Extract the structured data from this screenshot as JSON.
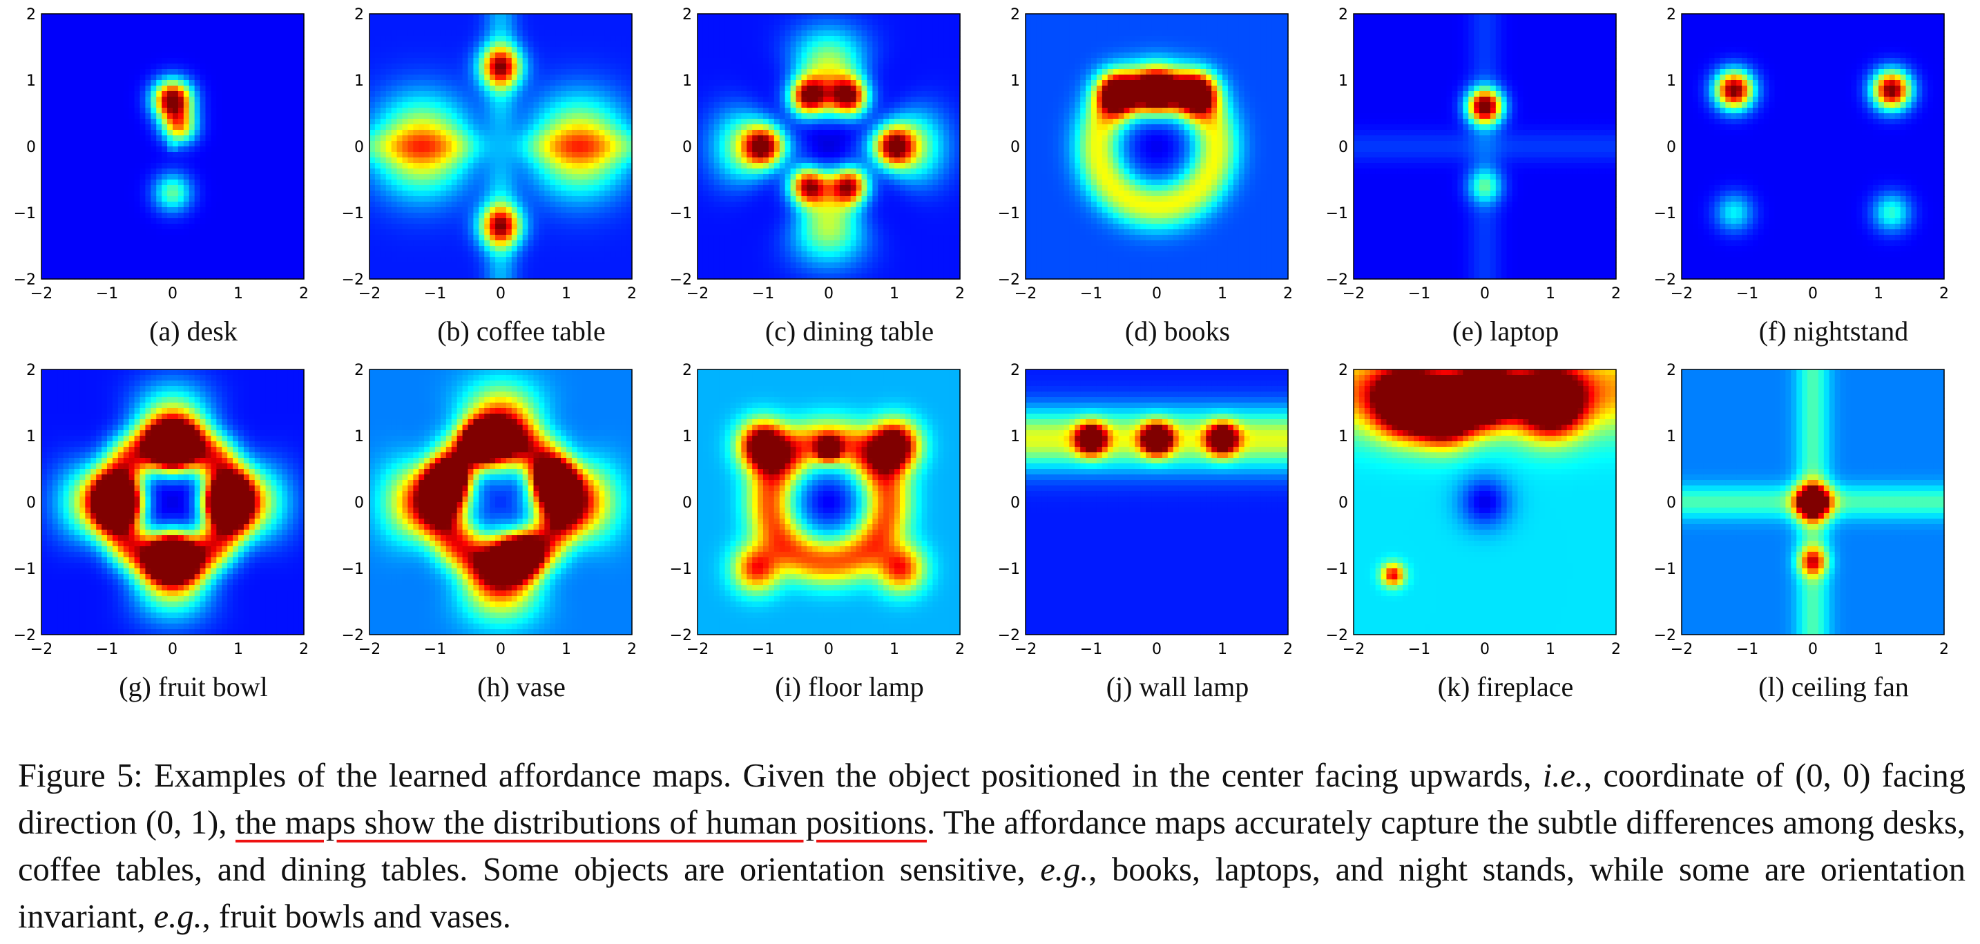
{
  "figure": {
    "colormap": "jet",
    "tick_labels": [
      "−2",
      "−1",
      "0",
      "1",
      "2"
    ],
    "panels": [
      {
        "caption": "(a) desk",
        "blobs": [
          [
            0,
            0.7,
            0.2,
            0.95
          ],
          [
            0.1,
            0.3,
            0.18,
            0.55
          ],
          [
            0,
            -0.7,
            0.2,
            0.35
          ],
          [
            0,
            0,
            0.05,
            0.12
          ]
        ],
        "base": 0.12,
        "cross": 0.0
      },
      {
        "caption": "(b) coffee table",
        "blobs": [
          [
            0,
            1.2,
            0.22,
            0.72
          ],
          [
            0,
            -1.2,
            0.22,
            0.72
          ],
          [
            -1.2,
            0,
            0.5,
            0.55
          ],
          [
            1.2,
            0,
            0.5,
            0.55
          ]
        ],
        "base": 0.15,
        "cross": 0.3,
        "hole": 0.4
      },
      {
        "caption": "(c) dining table",
        "blobs": [
          [
            -0.3,
            0.75,
            0.2,
            0.88
          ],
          [
            0.3,
            0.75,
            0.2,
            0.88
          ],
          [
            -0.3,
            -0.6,
            0.2,
            0.85
          ],
          [
            0.3,
            -0.6,
            0.2,
            0.85
          ],
          [
            -1,
            0,
            0.2,
            0.62
          ],
          [
            1,
            0,
            0.2,
            0.62
          ]
        ],
        "base": 0.14,
        "cross": 0.0,
        "star": 0.42,
        "hole": 0.35
      },
      {
        "caption": "(d) books",
        "blobs": [
          [
            -0.6,
            0.8,
            0.22,
            0.85
          ],
          [
            0,
            0.82,
            0.22,
            0.92
          ],
          [
            0.6,
            0.8,
            0.22,
            0.85
          ]
        ],
        "base": 0.2,
        "cross": 0.0,
        "ring": 0.42,
        "hole": 0.45
      },
      {
        "caption": "(e) laptop",
        "blobs": [
          [
            0,
            0.6,
            0.18,
            0.95
          ],
          [
            0,
            -0.6,
            0.18,
            0.3
          ]
        ],
        "base": 0.12,
        "cross": 0.12
      },
      {
        "caption": "(f) nightstand",
        "blobs": [
          [
            -1.2,
            0.85,
            0.2,
            0.92
          ],
          [
            1.2,
            0.85,
            0.2,
            0.92
          ],
          [
            1.2,
            -1,
            0.2,
            0.3
          ],
          [
            -1.2,
            -1,
            0.2,
            0.25
          ]
        ],
        "base": 0.12,
        "cross": 0.0
      },
      {
        "caption": "(g) fruit bowl",
        "blobs": [
          [
            0,
            0.8,
            0.22,
            0.95
          ],
          [
            0,
            -0.8,
            0.22,
            0.95
          ],
          [
            -0.8,
            0,
            0.22,
            0.95
          ],
          [
            0.8,
            0,
            0.22,
            0.95
          ]
        ],
        "base": 0.14,
        "cross": 0.0,
        "ring": 0.75,
        "star": 0.45,
        "hole": 0.3
      },
      {
        "caption": "(h) vase",
        "blobs": [
          [
            0.8,
            0.3,
            0.2,
            0.98
          ],
          [
            -0.8,
            0.3,
            0.2,
            0.95
          ],
          [
            0.3,
            -0.8,
            0.2,
            0.9
          ],
          [
            -0.3,
            0.9,
            0.2,
            0.85
          ]
        ],
        "base": 0.25,
        "cross": 0.0,
        "ring": 0.65,
        "star": 0.55,
        "hole": 0.3
      },
      {
        "caption": "(i) floor lamp",
        "blobs": [
          [
            -1,
            0.85,
            0.25,
            0.92
          ],
          [
            1,
            0.85,
            0.25,
            0.92
          ],
          [
            0,
            0.8,
            0.12,
            0.75
          ],
          [
            -1.1,
            -1,
            0.25,
            0.55
          ],
          [
            1.1,
            -1,
            0.25,
            0.55
          ]
        ],
        "base": 0.3,
        "cross": 0.0,
        "ring": 0.5,
        "hole": 0.6
      },
      {
        "caption": "(j) wall lamp",
        "blobs": [
          [
            -1,
            0.95,
            0.16,
            0.85
          ],
          [
            0,
            0.95,
            0.16,
            0.95
          ],
          [
            1,
            0.95,
            0.16,
            0.85
          ]
        ],
        "base": 0.15,
        "band": 0.45
      },
      {
        "caption": "(k) fireplace",
        "blobs": [
          [
            -1.2,
            1.5,
            0.35,
            0.9
          ],
          [
            0,
            1.6,
            0.3,
            0.95
          ],
          [
            1,
            1.5,
            0.35,
            0.9
          ],
          [
            -0.6,
            1.3,
            0.3,
            0.85
          ],
          [
            -1.4,
            -1.1,
            0.12,
            0.55
          ]
        ],
        "base": 0.35,
        "top": 0.6,
        "hole": 0.7
      },
      {
        "caption": "(l) ceiling fan",
        "blobs": [
          [
            0,
            0,
            0.18,
            0.95
          ],
          [
            0,
            -0.9,
            0.15,
            0.5
          ]
        ],
        "base": 0.25,
        "cross": 0.4
      }
    ]
  },
  "caption": {
    "prefix": "Figure 5: Examples of the learned affordance maps. Given the object positioned in the center facing upwards, ",
    "ie": "i.e.",
    "mid1": ", coordinate of (0, 0) facing direction (0, 1), ",
    "highlight": "the maps show the distributions of human positions",
    "mid2": ". The affordance maps accurately capture the subtle differences among desks, coffee tables, and dining tables.  Some objects are orientation sensitive, ",
    "eg1": "e.g.",
    "mid3": ", books, laptops, and night stands, while some are orientation invariant, ",
    "eg2": "e.g.",
    "suffix": ", fruit bowls and vases."
  }
}
